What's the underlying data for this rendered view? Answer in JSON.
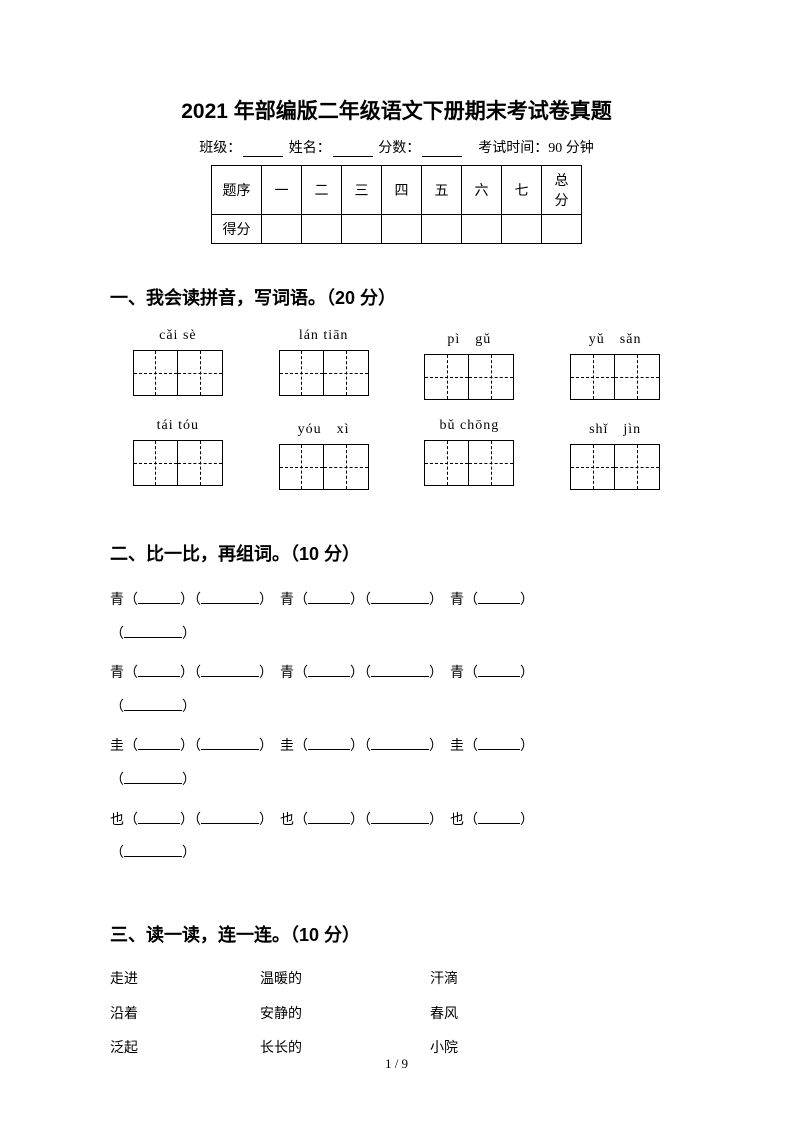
{
  "title": "2021 年部编版二年级语文下册期末考试卷真题",
  "info": {
    "class_label": "班级：",
    "name_label": "姓名：",
    "score_label": "分数：",
    "time_label": "考试时间：90 分钟"
  },
  "score_table": {
    "row1": [
      "题序",
      "一",
      "二",
      "三",
      "四",
      "五",
      "六",
      "七",
      "总分"
    ],
    "row2_header": "得分"
  },
  "section1": {
    "title": "一、我会读拼音，写词语。（20 分）",
    "items": [
      {
        "pinyin": "cǎi sè"
      },
      {
        "pinyin": "lán tiān"
      },
      {
        "pinyin": "pì　gǔ"
      },
      {
        "pinyin": "yǔ　sǎn"
      },
      {
        "pinyin": "tái tóu"
      },
      {
        "pinyin": "yóu　xì"
      },
      {
        "pinyin": "bǔ chōng"
      },
      {
        "pinyin": "shǐ　jìn"
      }
    ]
  },
  "section2": {
    "title": "二、比一比，再组词。（10 分）",
    "chars": {
      "c1": "青",
      "c2": "青",
      "c3": "圭",
      "c4": "也"
    }
  },
  "section3": {
    "title": "三、读一读，连一连。（10 分）",
    "rows": [
      {
        "a": "走进",
        "b": "温暖的",
        "c": "汗滴"
      },
      {
        "a": "沿着",
        "b": "安静的",
        "c": "春风"
      },
      {
        "a": "泛起",
        "b": "长长的",
        "c": "小院"
      }
    ]
  },
  "page_number": "1 / 9"
}
